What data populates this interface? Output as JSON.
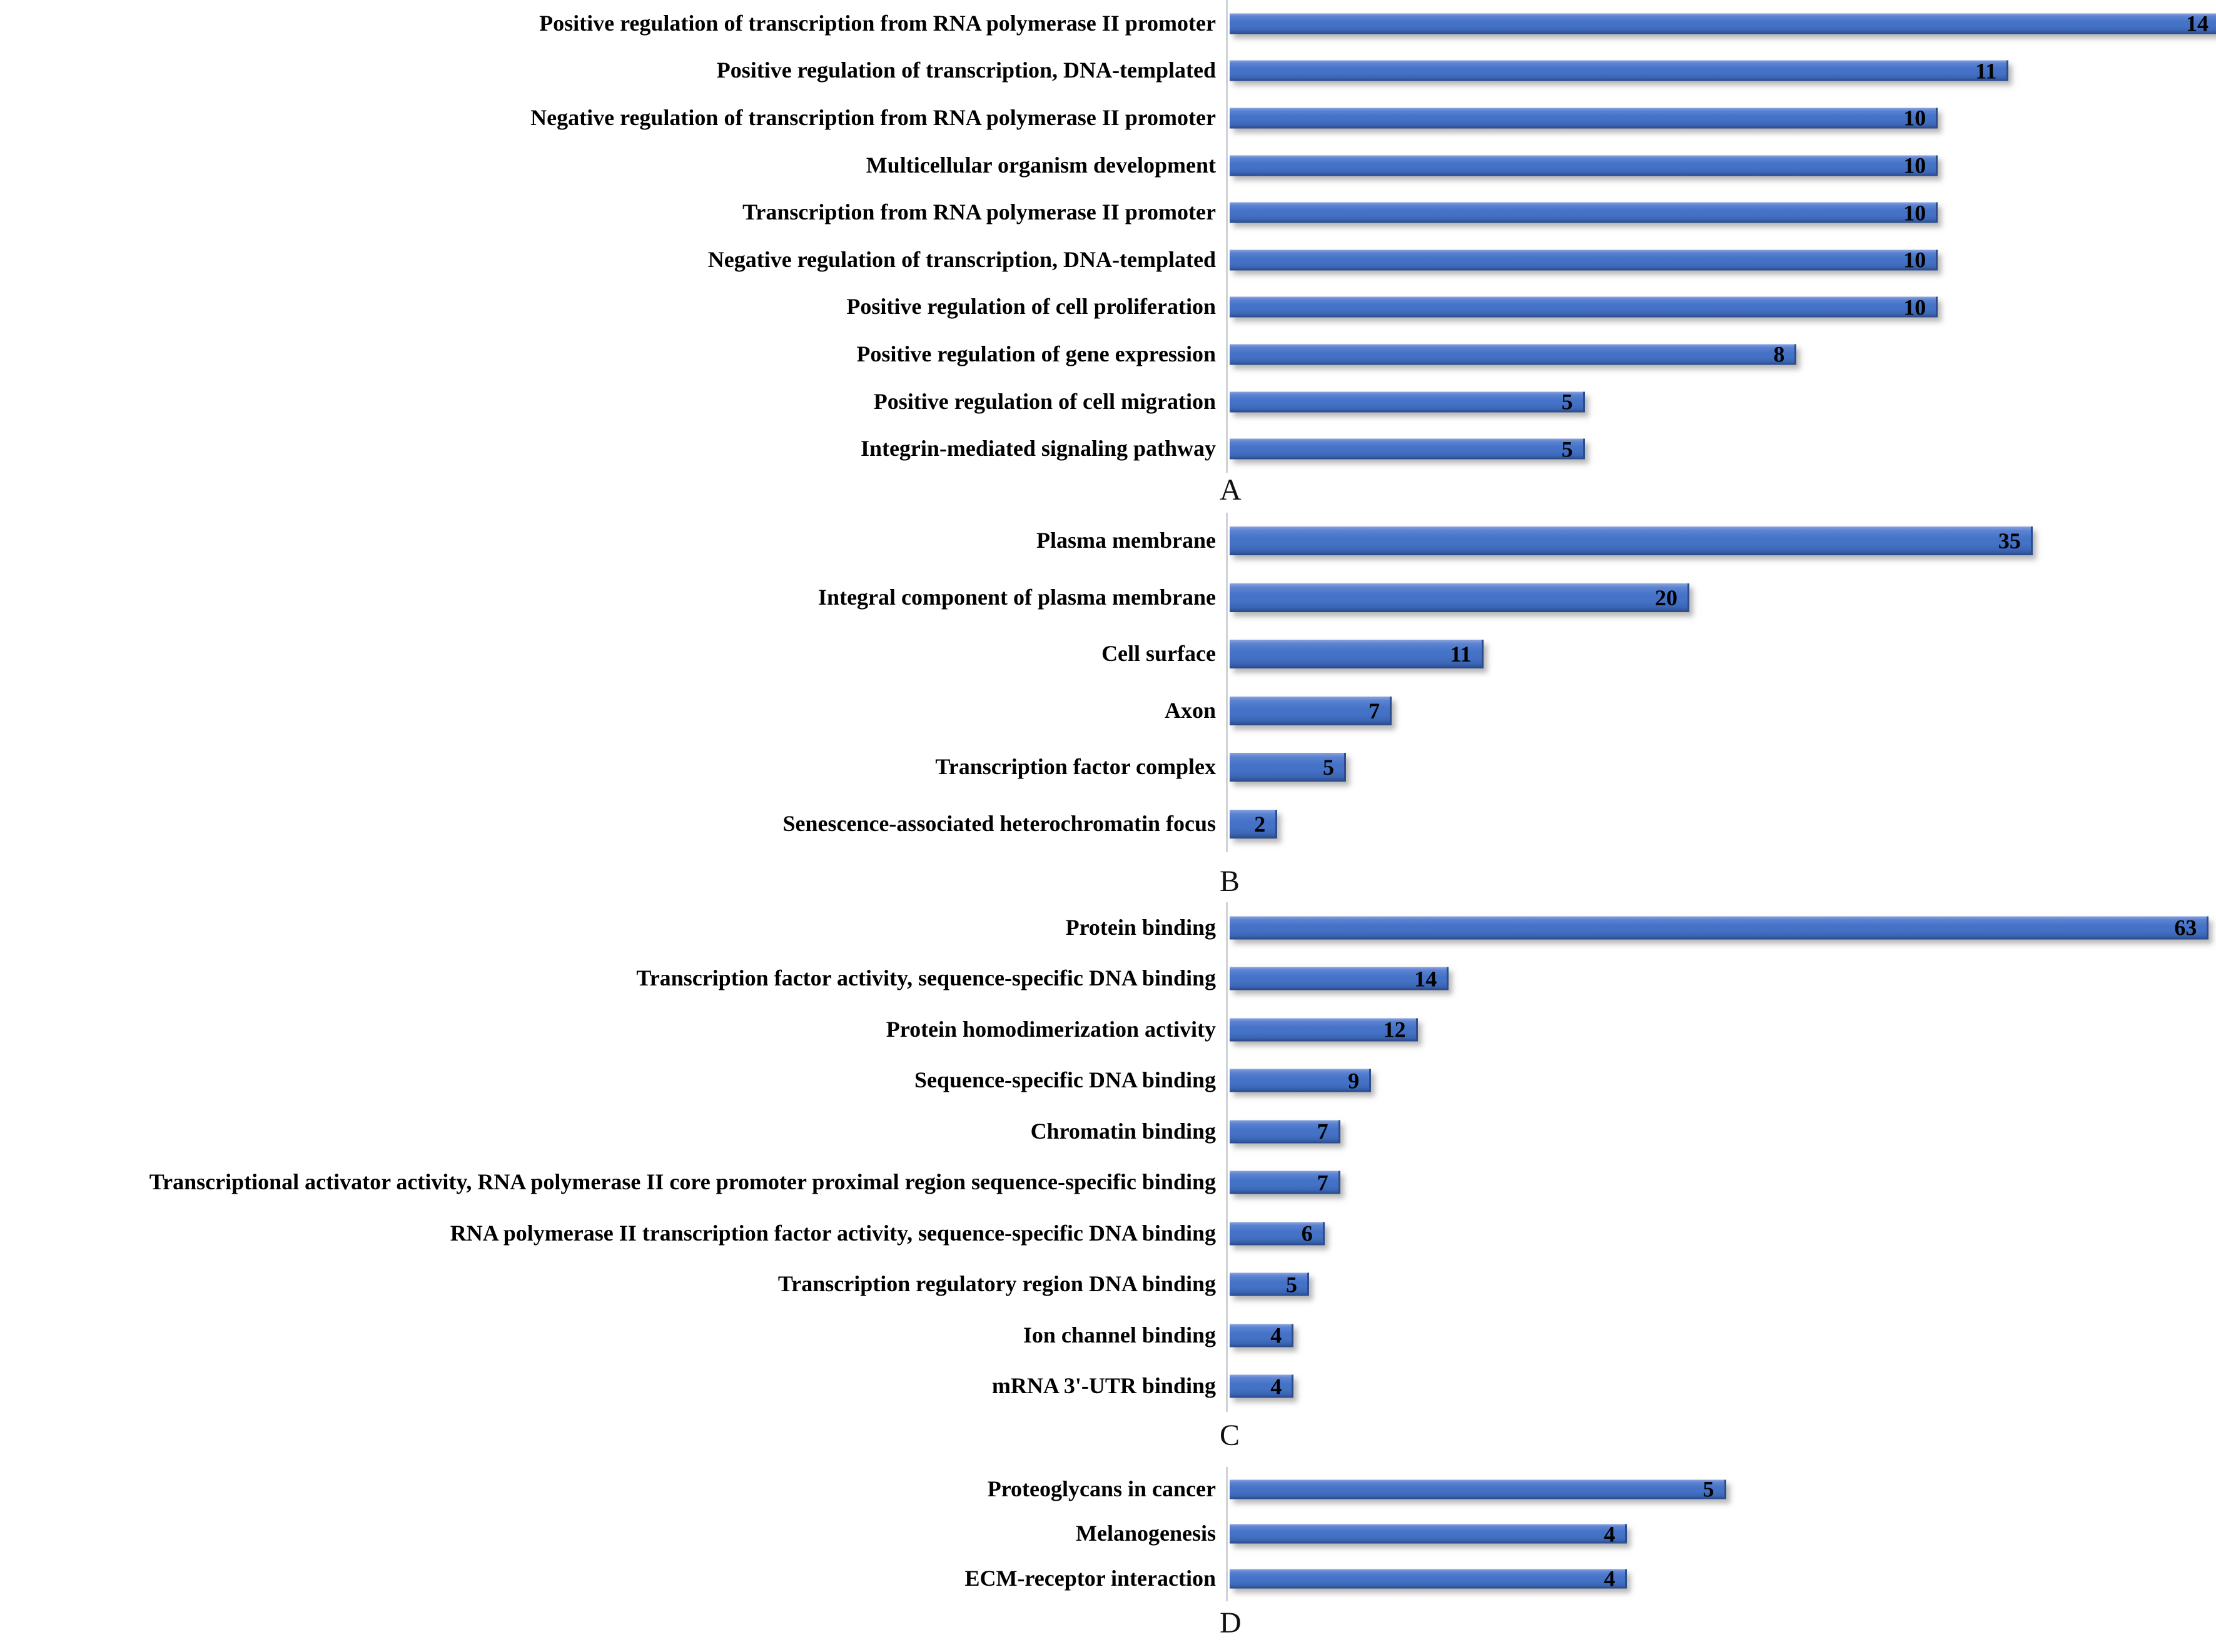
{
  "style": {
    "background": "#ffffff",
    "bar_fill": "#4472c4",
    "bar_fill_highlight": "#8aa4dd",
    "bar_fill_shadow": "#27457f",
    "axis_line_color": "#cfd2d6",
    "label_text_color": "#000000",
    "value_text_color": "#000000"
  },
  "chart_data": [
    {
      "type": "bar",
      "orientation": "horizontal",
      "panel_label": "A",
      "title": "",
      "grid": false,
      "legend": "none",
      "value_labels": true,
      "axis_max": 14,
      "xlim": [
        0,
        14
      ],
      "categories": [
        "Positive regulation of transcription from RNA polymerase II promoter",
        "Positive regulation of transcription, DNA-templated",
        "Negative regulation of transcription from RNA polymerase II promoter",
        "Multicellular organism development",
        "Transcription from RNA polymerase II promoter",
        "Negative regulation of transcription, DNA-templated",
        "Positive regulation of cell proliferation",
        "Positive regulation of gene expression",
        "Positive regulation of cell migration",
        "Integrin-mediated signaling pathway"
      ],
      "values": [
        14,
        11,
        10,
        10,
        10,
        10,
        10,
        8,
        5,
        5
      ]
    },
    {
      "type": "bar",
      "orientation": "horizontal",
      "panel_label": "B",
      "title": "",
      "grid": false,
      "legend": "none",
      "value_labels": true,
      "axis_max": 43.2,
      "xlim": [
        0,
        43.2
      ],
      "categories": [
        "Plasma membrane",
        "Integral component of plasma membrane",
        "Cell surface",
        "Axon",
        "Transcription factor complex",
        "Senescence-associated heterochromatin focus"
      ],
      "values": [
        35,
        20,
        11,
        7,
        5,
        2
      ]
    },
    {
      "type": "bar",
      "orientation": "horizontal",
      "panel_label": "C",
      "title": "",
      "grid": false,
      "legend": "none",
      "value_labels": true,
      "axis_max": 63.75,
      "xlim": [
        0,
        63.75
      ],
      "categories": [
        "Protein binding",
        "Transcription factor activity, sequence-specific DNA binding",
        "Protein homodimerization activity",
        "Sequence-specific DNA binding",
        "Chromatin binding",
        "Transcriptional activator activity, RNA polymerase II core promoter proximal region sequence-specific binding",
        "RNA polymerase II transcription factor activity, sequence-specific DNA binding",
        "Transcription regulatory region DNA binding",
        "Ion channel binding",
        "mRNA 3'-UTR binding"
      ],
      "values": [
        63,
        14,
        12,
        9,
        7,
        7,
        6,
        5,
        4,
        4
      ]
    },
    {
      "type": "bar",
      "orientation": "horizontal",
      "panel_label": "D",
      "title": "",
      "grid": false,
      "legend": "none",
      "value_labels": true,
      "axis_max": 10,
      "xlim": [
        0,
        10
      ],
      "categories": [
        "Proteoglycans in cancer",
        "Melanogenesis",
        "ECM-receptor interaction"
      ],
      "values": [
        5,
        4,
        4
      ]
    }
  ]
}
